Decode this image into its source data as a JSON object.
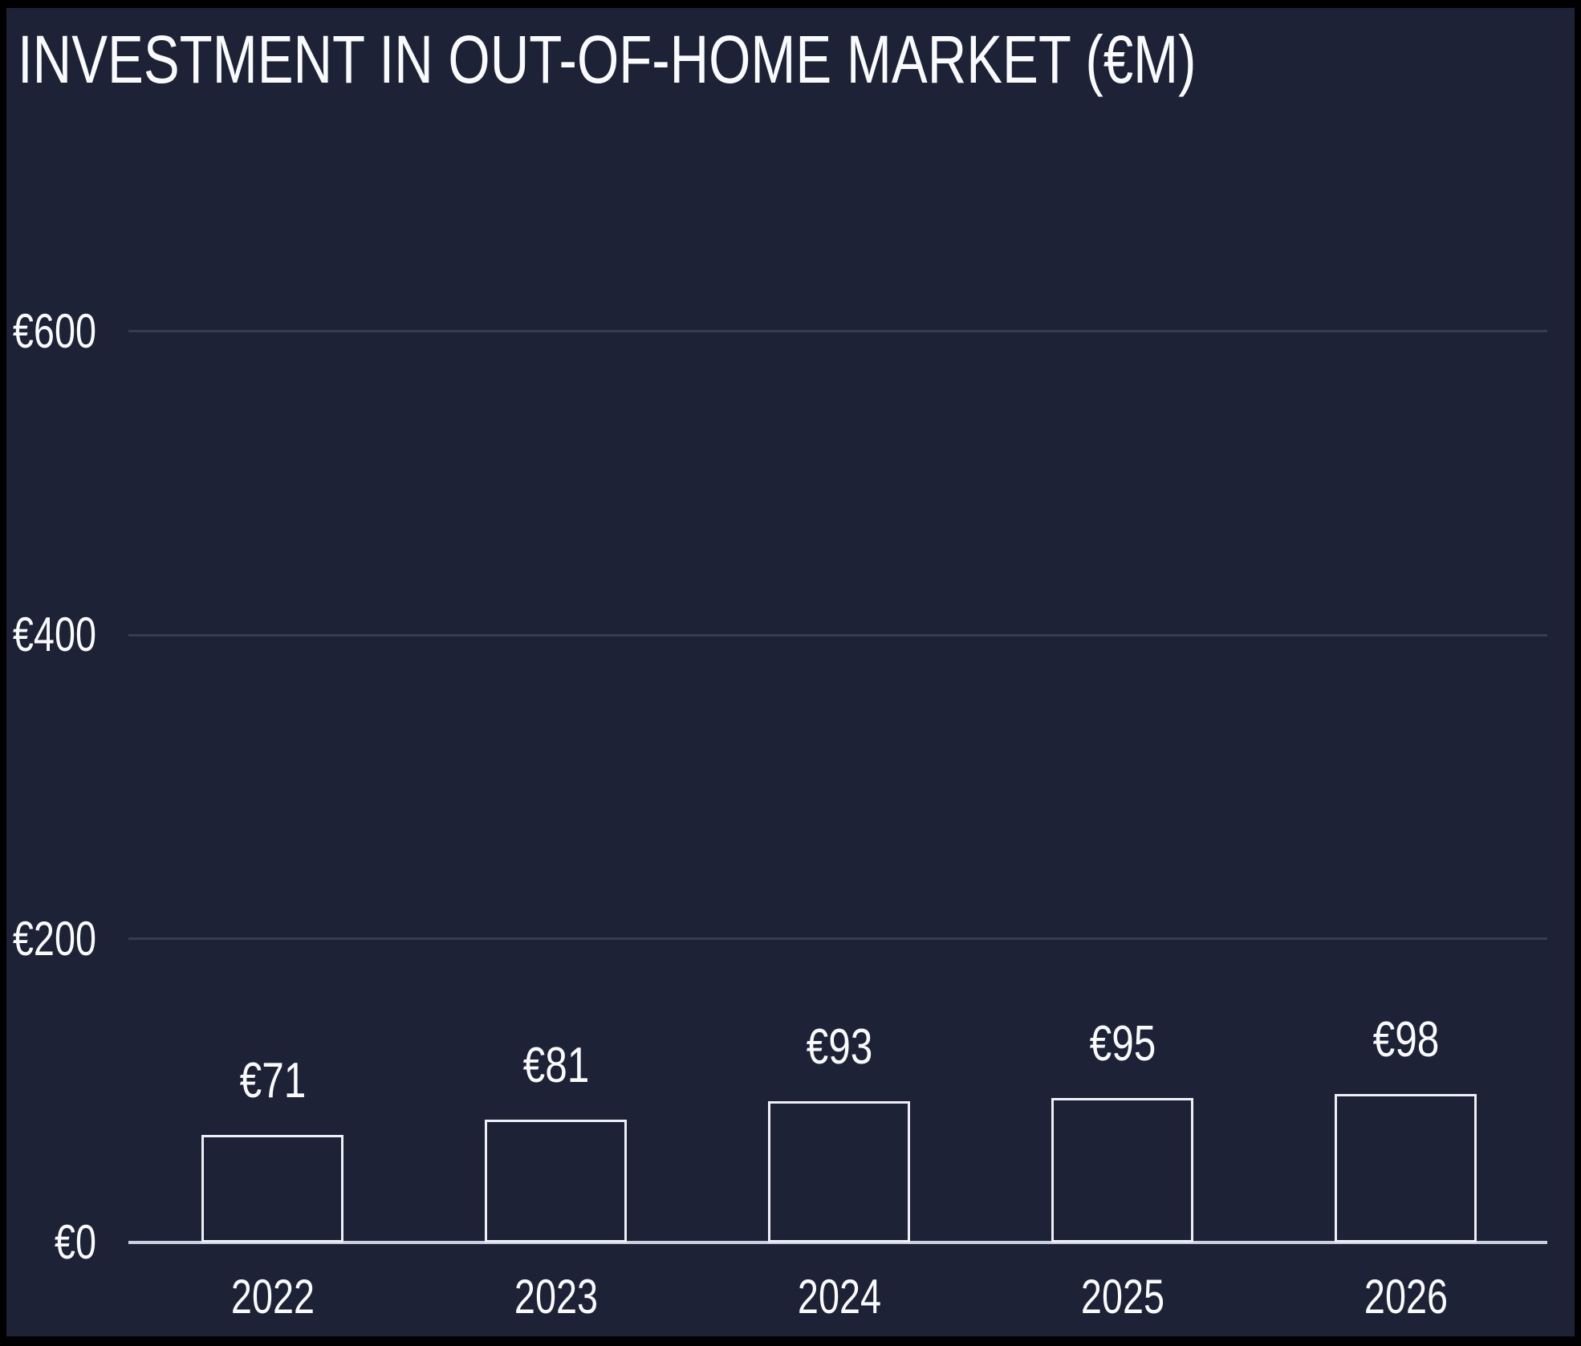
{
  "chart_data": {
    "type": "bar",
    "title": "INVESTMENT IN OUT-OF-HOME MARKET (€M)",
    "categories": [
      "2022",
      "2023",
      "2024",
      "2025",
      "2026"
    ],
    "values": [
      71,
      81,
      93,
      95,
      98
    ],
    "data_labels": [
      "€71",
      "€81",
      "€93",
      "€95",
      "€98"
    ],
    "series_name": "Investment",
    "unit": "€M",
    "y_ticks": [
      {
        "value": 0,
        "label": "€0"
      },
      {
        "value": 200,
        "label": "€200"
      },
      {
        "value": 400,
        "label": "€400"
      },
      {
        "value": 600,
        "label": "€600"
      }
    ],
    "ylim": [
      0,
      600
    ],
    "grid": "horizontal",
    "legend": "none",
    "bar_style": "outlined, unfilled",
    "colors": {
      "background": "#1d2237",
      "frame_border": "#000000",
      "text": "#fafbfe",
      "gridline": "#363c52",
      "axis_line": "#cbd0de",
      "bar_border": "#eef0f6",
      "bar_fill": "#1d2237"
    }
  }
}
